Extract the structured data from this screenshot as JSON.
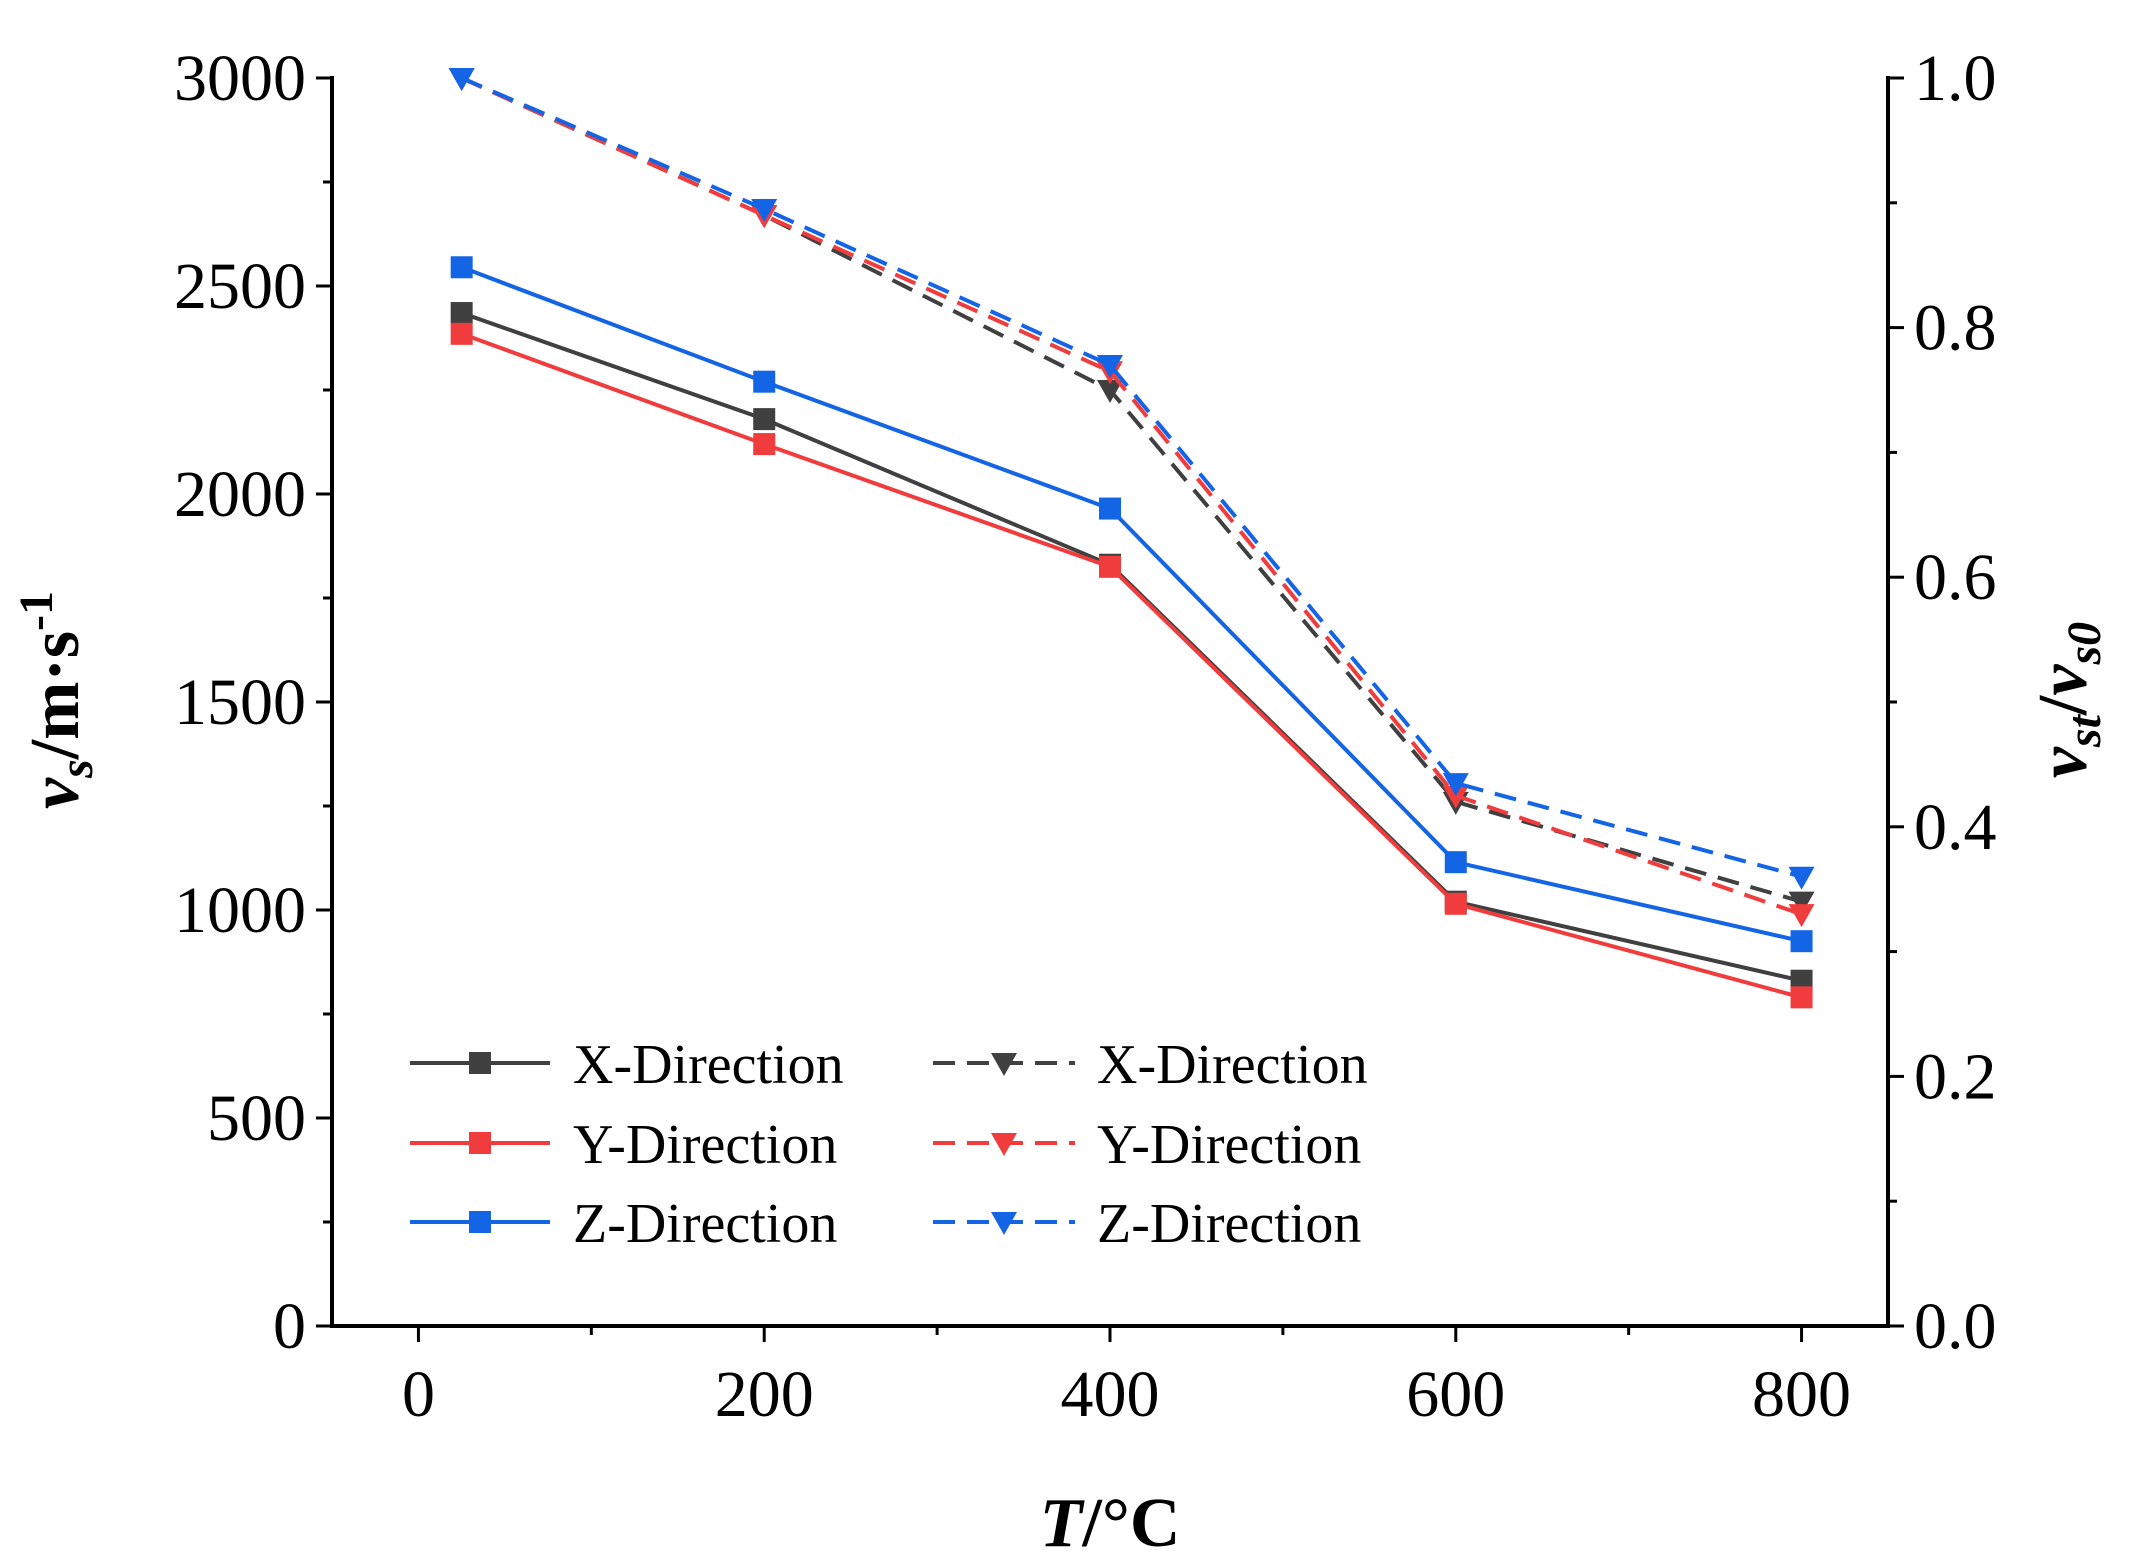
{
  "chart_data": {
    "type": "line",
    "x": [
      25,
      200,
      400,
      600,
      800
    ],
    "xlabel": {
      "italic": "T",
      "rest": "/°C"
    },
    "ylabel_left": {
      "var": "v",
      "sub": "s",
      "unit": "/m·s",
      "sup": "-1"
    },
    "ylabel_right": {
      "var1": "v",
      "sub1": "st",
      "slash": "/",
      "var2": "v",
      "sub2": "s0"
    },
    "xlim": [
      -50,
      850
    ],
    "ylim_left": [
      0,
      3000
    ],
    "ylim_right": [
      0.0,
      1.0
    ],
    "xticks": [
      0,
      200,
      400,
      600,
      800
    ],
    "xtick_labels": [
      "0",
      "200",
      "400",
      "600",
      "800"
    ],
    "yticks_left": [
      0,
      500,
      1000,
      1500,
      2000,
      2500,
      3000
    ],
    "ytick_labels_left": [
      "0",
      "500",
      "1000",
      "1500",
      "2000",
      "2500",
      "3000"
    ],
    "yticks_right": [
      0.0,
      0.2,
      0.4,
      0.6,
      0.8,
      1.0
    ],
    "ytick_labels_right": [
      "0.0",
      "0.2",
      "0.4",
      "0.6",
      "0.8",
      "1.0"
    ],
    "grid": false,
    "legend_position": "bottom-left",
    "series": [
      {
        "name": "X-Direction",
        "axis": "left",
        "marker": "square",
        "line": "solid",
        "color": "#404040",
        "values": [
          2435,
          2180,
          1830,
          1020,
          830
        ]
      },
      {
        "name": "Y-Direction",
        "axis": "left",
        "marker": "square",
        "line": "solid",
        "color": "#f03c3c",
        "values": [
          2385,
          2120,
          1825,
          1015,
          790
        ]
      },
      {
        "name": "Z-Direction",
        "axis": "left",
        "marker": "square",
        "line": "solid",
        "color": "#1464e6",
        "values": [
          2545,
          2270,
          1965,
          1115,
          925
        ]
      },
      {
        "name": "X-Direction",
        "axis": "right",
        "marker": "triangle-down",
        "line": "dashed",
        "color": "#404040",
        "values": [
          1.0,
          0.89,
          0.75,
          0.42,
          0.34
        ]
      },
      {
        "name": "Y-Direction",
        "axis": "right",
        "marker": "triangle-down",
        "line": "dashed",
        "color": "#f03c3c",
        "values": [
          1.0,
          0.89,
          0.765,
          0.425,
          0.33
        ]
      },
      {
        "name": "Z-Direction",
        "axis": "right",
        "marker": "triangle-down",
        "line": "dashed",
        "color": "#1464e6",
        "values": [
          1.0,
          0.895,
          0.77,
          0.435,
          0.36
        ]
      }
    ]
  }
}
